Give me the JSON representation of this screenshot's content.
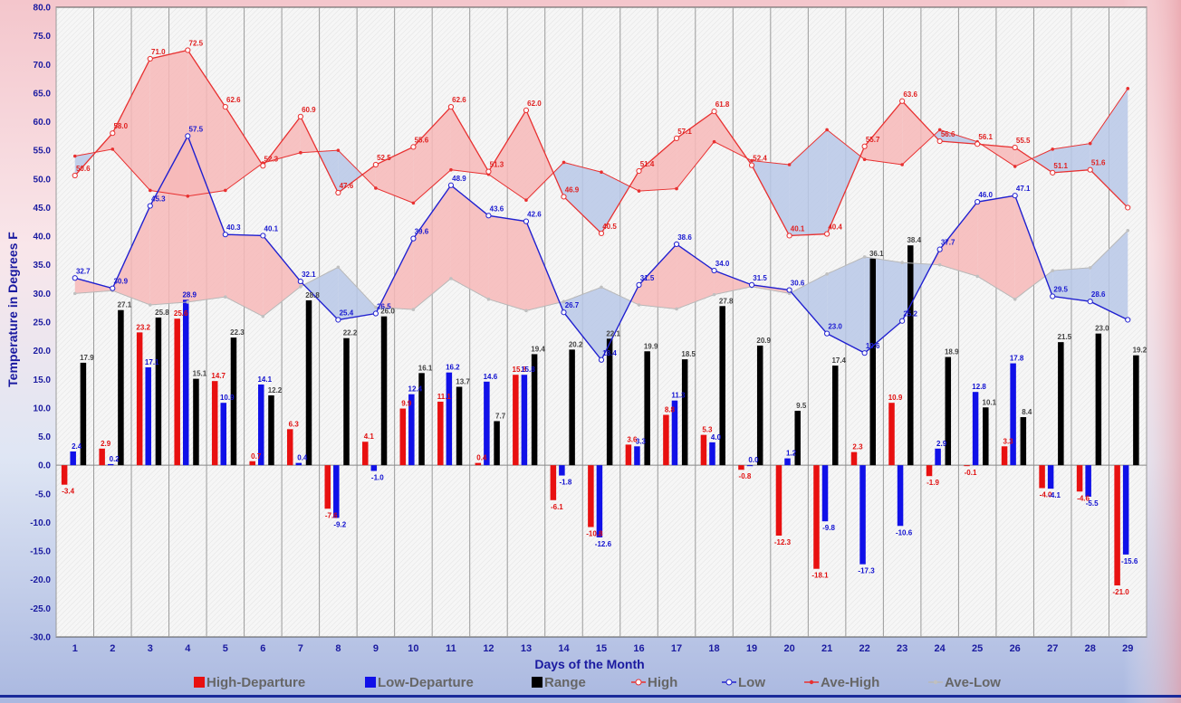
{
  "chart_data": {
    "type": "bar",
    "xlabel": "Days of the Month",
    "ylabel": "Temperature  in  Degrees  F",
    "ylim": [
      -30,
      80
    ],
    "ytick_step": 5,
    "categories": [
      "1",
      "2",
      "3",
      "4",
      "5",
      "6",
      "7",
      "8",
      "9",
      "10",
      "11",
      "12",
      "13",
      "14",
      "15",
      "16",
      "17",
      "18",
      "19",
      "20",
      "21",
      "22",
      "23",
      "24",
      "25",
      "26",
      "27",
      "28",
      "29"
    ],
    "grid": true,
    "legend_position": "bottom",
    "series": [
      {
        "name": "High-Departure",
        "kind": "bar",
        "color": "#e81010",
        "values": [
          -3.4,
          2.9,
          23.2,
          25.6,
          14.7,
          0.7,
          6.3,
          -7.6,
          4.1,
          9.9,
          11.1,
          0.4,
          15.8,
          -6.1,
          -10.8,
          3.6,
          8.8,
          5.3,
          -0.8,
          -12.3,
          -18.1,
          2.3,
          10.9,
          -1.9,
          -0.1,
          3.3,
          -4.0,
          -4.6,
          -21.0
        ]
      },
      {
        "name": "Low-Departure",
        "kind": "bar",
        "color": "#1010e8",
        "values": [
          2.4,
          0.2,
          17.1,
          28.9,
          10.9,
          14.1,
          0.4,
          -9.2,
          -1.0,
          12.4,
          16.2,
          14.6,
          15.8,
          -1.8,
          -12.6,
          3.3,
          11.3,
          4.0,
          0.0,
          1.2,
          -9.8,
          -17.3,
          -10.6,
          2.9,
          12.8,
          17.8,
          -4.1,
          -5.5,
          -15.6
        ]
      },
      {
        "name": "Range",
        "kind": "bar",
        "color": "#000000",
        "values": [
          17.9,
          27.1,
          25.8,
          15.1,
          22.3,
          12.2,
          28.8,
          22.2,
          26.0,
          16.1,
          13.7,
          7.7,
          19.4,
          20.2,
          22.1,
          19.9,
          18.5,
          27.8,
          20.9,
          9.5,
          17.4,
          36.1,
          38.4,
          18.9,
          10.1,
          8.4,
          21.5,
          23.0,
          19.2
        ]
      },
      {
        "name": "High",
        "kind": "line",
        "color": "#e83030",
        "values": [
          50.6,
          58.0,
          71.0,
          72.5,
          62.6,
          52.3,
          60.9,
          47.6,
          52.5,
          55.6,
          62.6,
          51.3,
          62.0,
          46.9,
          40.5,
          51.4,
          57.1,
          61.8,
          52.4,
          40.1,
          40.4,
          55.7,
          63.6,
          56.6,
          56.1,
          55.5,
          51.1,
          51.6,
          45.0
        ]
      },
      {
        "name": "Low",
        "kind": "line",
        "color": "#2020d0",
        "values": [
          32.7,
          30.9,
          45.3,
          57.5,
          40.3,
          40.1,
          32.1,
          25.4,
          26.5,
          39.6,
          48.9,
          43.6,
          42.6,
          26.7,
          18.4,
          31.5,
          38.6,
          34.0,
          31.5,
          30.6,
          23.0,
          19.6,
          25.2,
          37.7,
          46.0,
          47.1,
          29.5,
          28.6,
          25.4
        ]
      },
      {
        "name": "Ave-High",
        "kind": "line",
        "color": "#e83030",
        "values": [
          54.0,
          55.2,
          48.0,
          47.0,
          48.0,
          52.8,
          54.6,
          55.0,
          48.4,
          45.8,
          51.6,
          50.8,
          46.3,
          52.9,
          51.2,
          47.9,
          48.3,
          56.5,
          53.2,
          52.5,
          58.6,
          53.4,
          52.5,
          58.6,
          56.5,
          52.2,
          55.2,
          56.2,
          65.8
        ]
      },
      {
        "name": "Ave-Low",
        "kind": "line",
        "color": "#b8b8b8",
        "values": [
          30.0,
          30.5,
          28.0,
          28.5,
          29.4,
          26.0,
          31.2,
          34.6,
          27.6,
          27.2,
          32.6,
          29.0,
          27.0,
          28.6,
          31.1,
          28.0,
          27.3,
          29.8,
          31.2,
          30.0,
          33.4,
          36.4,
          35.4,
          35.0,
          33.0,
          29.0,
          34.0,
          34.5,
          41.0
        ]
      }
    ],
    "value_labels": {
      "High-Departure": [
        "-3.4",
        "2.9",
        "23.2",
        "25.6",
        "14.7",
        "0.7",
        "6.3",
        "-7.6",
        "4.1",
        "9.9",
        "11.1",
        "0.4",
        "15.8",
        "-6.1",
        "-10.8",
        "3.6",
        "8.8",
        "5.3",
        "-0.8",
        "-12.3",
        "-18.1",
        "2.3",
        "10.9",
        "-1.9",
        "-0.1",
        "3.3",
        "-4.0",
        "-4.6",
        "-21.0"
      ],
      "Low-Departure": [
        "2.4",
        "0.2",
        "17.1",
        "28.9",
        "10.9",
        "14.1",
        "0.4",
        "-9.2",
        "-1.0",
        "12.4",
        "16.2",
        "14.6",
        "15.8",
        "-1.8",
        "-12.6",
        "3.3",
        "11.3",
        "4.0",
        "0.0",
        "1.2",
        "-9.8",
        "-17.3",
        "-10.6",
        "2.9",
        "12.8",
        "17.8",
        "-4.1",
        "-5.5",
        "-15.6"
      ],
      "Range": [
        "17.9",
        "27.1",
        "25.8",
        "15.1",
        "22.3",
        "12.2",
        "28.8",
        "22.2",
        "26.0",
        "16.1",
        "13.7",
        "7.7",
        "19.4",
        "20.2",
        "22.1",
        "19.9",
        "18.5",
        "27.8",
        "20.9",
        "9.5",
        "17.4",
        "36.1",
        "38.4",
        "18.9",
        "10.1",
        "8.4",
        "21.5",
        "23.0",
        "19.2"
      ],
      "High": [
        "50.6",
        "58.0",
        "71.0",
        "72.5",
        "62.6",
        "52.3",
        "60.9",
        "47.6",
        "52.5",
        "55.6",
        "62.6",
        "51.3",
        "62.0",
        "46.9",
        "40.5",
        "51.4",
        "57.1",
        "61.8",
        "52.4",
        "40.1",
        "40.4",
        "55.7",
        "63.6",
        "56.6",
        "56.1",
        "55.5",
        "51.1",
        "51.6",
        ""
      ],
      "Low": [
        "32.7",
        "30.9",
        "45.3",
        "57.5",
        "40.3",
        "40.1",
        "32.1",
        "25.4",
        "26.5",
        "39.6",
        "48.9",
        "43.6",
        "42.6",
        "26.7",
        "18.4",
        "31.5",
        "38.6",
        "34.0",
        "31.5",
        "30.6",
        "23.0",
        "19.6",
        "25.2",
        "37.7",
        "46.0",
        "47.1",
        "29.5",
        "28.6",
        ""
      ]
    },
    "fills": {
      "high_above_avg": "#f7b8b8",
      "high_below_avg": "#b8c8e8",
      "low_above_avg": "#f7b8b8",
      "low_below_avg": "#b8c8e8"
    }
  }
}
